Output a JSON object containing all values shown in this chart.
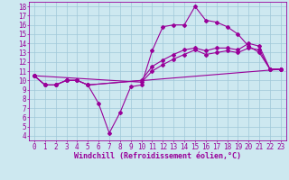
{
  "xlabel": "Windchill (Refroidissement éolien,°C)",
  "bg_color": "#cde8f0",
  "line_color": "#990099",
  "grid_color": "#a0c8d8",
  "xlim": [
    -0.5,
    23.5
  ],
  "ylim": [
    3.5,
    18.5
  ],
  "xticks": [
    0,
    1,
    2,
    3,
    4,
    5,
    6,
    7,
    8,
    9,
    10,
    11,
    12,
    13,
    14,
    15,
    16,
    17,
    18,
    19,
    20,
    21,
    22,
    23
  ],
  "yticks": [
    4,
    5,
    6,
    7,
    8,
    9,
    10,
    11,
    12,
    13,
    14,
    15,
    16,
    17,
    18
  ],
  "line1_x": [
    0,
    1,
    2,
    3,
    4,
    5,
    6,
    7,
    8,
    9,
    10,
    11,
    12,
    13,
    14,
    15,
    16,
    17,
    18,
    19,
    20,
    21,
    22,
    23
  ],
  "line1_y": [
    10.5,
    9.5,
    9.5,
    10.0,
    10.0,
    9.5,
    7.5,
    4.3,
    6.5,
    9.3,
    9.5,
    13.2,
    15.8,
    16.0,
    16.0,
    18.0,
    16.5,
    16.3,
    15.8,
    15.0,
    13.7,
    13.0,
    11.2,
    11.2
  ],
  "line2_x": [
    0,
    1,
    2,
    3,
    4,
    5,
    10,
    11,
    12,
    13,
    14,
    15,
    16,
    17,
    18,
    19,
    20,
    21,
    22,
    23
  ],
  "line2_y": [
    10.5,
    9.5,
    9.5,
    10.0,
    10.0,
    9.5,
    10.0,
    11.5,
    12.2,
    12.8,
    13.3,
    13.5,
    13.2,
    13.5,
    13.5,
    13.3,
    14.0,
    13.7,
    11.2,
    11.2
  ],
  "line3_x": [
    0,
    1,
    2,
    3,
    4,
    5,
    23
  ],
  "line3_y": [
    10.5,
    9.5,
    9.5,
    10.0,
    10.0,
    9.5,
    11.2
  ],
  "line4_x": [
    0,
    10,
    11,
    12,
    13,
    14,
    15,
    16,
    17,
    18,
    19,
    20,
    21,
    22,
    23
  ],
  "line4_y": [
    10.5,
    9.8,
    11.0,
    11.7,
    12.3,
    12.8,
    13.3,
    12.8,
    13.0,
    13.2,
    13.0,
    13.5,
    13.3,
    11.2,
    11.2
  ],
  "font_size": 6,
  "tick_fontsize": 5.5,
  "markersize": 2.0
}
